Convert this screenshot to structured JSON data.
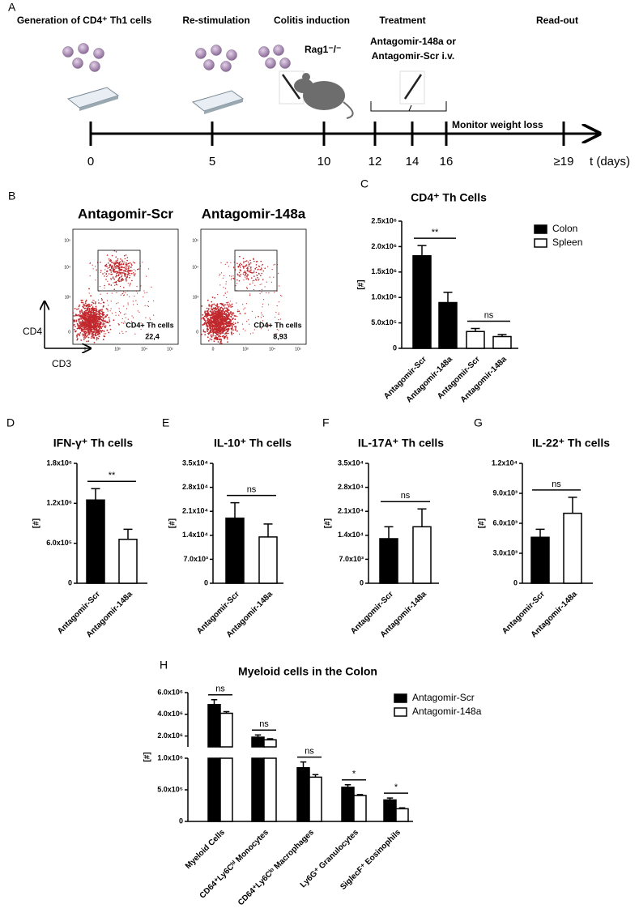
{
  "panel_labels": [
    "A",
    "B",
    "C",
    "D",
    "E",
    "F",
    "G",
    "H"
  ],
  "timeline": {
    "stages": [
      "Generation of CD4⁺ Th1 cells",
      "Re-stimulation",
      "Colitis induction",
      "Treatment",
      "Read-out"
    ],
    "strain": "Rag1⁻/⁻",
    "treatment": [
      "Antagomir-148a or",
      "Antagomir-Scr i.v."
    ],
    "monitor": "Monitor weight loss",
    "days": [
      "0",
      "5",
      "10",
      "12",
      "14",
      "16",
      "≥19"
    ],
    "axis_label": "t (days)"
  },
  "flow": {
    "plots": [
      {
        "title": "Antagomir-Scr",
        "gate": "CD4+ Th cells",
        "percent": "22,4"
      },
      {
        "title": "Antagomir-148a",
        "gate": "CD4+ Th cells",
        "percent": "8,93"
      }
    ],
    "y_ticks": [
      "10⁵",
      "10⁴",
      "10³",
      "0"
    ],
    "x_ticks": [
      "0",
      "10³",
      "10⁴",
      "10⁵"
    ],
    "y_label": "CD4",
    "x_label": "CD3"
  },
  "chart_data": [
    {
      "type": "bar",
      "title": "CD4⁺ Th Cells",
      "ylabel": "[#]",
      "categories": [
        "Antagomir-Scr",
        "Antagomir-148a",
        "Antagomir-Scr",
        "Antagomir-148a"
      ],
      "series": [
        {
          "name": "Colon",
          "color": "#000000",
          "values": [
            1820000,
            900000,
            null,
            null
          ],
          "errors": [
            200000,
            200000,
            null,
            null
          ]
        },
        {
          "name": "Spleen",
          "color": "#ffffff",
          "values": [
            null,
            null,
            330000,
            230000
          ],
          "errors": [
            null,
            null,
            60000,
            40000
          ]
        }
      ],
      "ylim": [
        0,
        2500000
      ],
      "yticks": [
        0,
        {
          "value": 500000,
          "label": "5.0x10⁵"
        },
        {
          "value": 1000000,
          "label": "1.0x10⁶"
        },
        {
          "value": 1500000,
          "label": "1.5x10⁶"
        },
        {
          "value": 2000000,
          "label": "2.0x10⁶"
        },
        {
          "value": 2500000,
          "label": "2.5x10⁶"
        }
      ],
      "legend": "right",
      "comparisons": [
        {
          "label": "**",
          "categories": [
            0,
            1
          ]
        },
        {
          "label": "ns",
          "categories": [
            2,
            3
          ]
        }
      ]
    },
    {
      "type": "bar",
      "title": "IFN-γ⁺ Th cells",
      "ylabel": "[#]",
      "categories": [
        "Antagomir-Scr",
        "Antagomir-148a"
      ],
      "values": [
        1250000,
        660000
      ],
      "errors": [
        170000,
        150000
      ],
      "colors": [
        "#000000",
        "#ffffff"
      ],
      "ylim": [
        0,
        1800000
      ],
      "yticks": [
        0,
        {
          "value": 600000,
          "label": "6.0x10⁵"
        },
        {
          "value": 1200000,
          "label": "1.2x10⁶"
        },
        {
          "value": 1800000,
          "label": "1.8x10⁶"
        }
      ],
      "comparisons": [
        {
          "label": "**",
          "categories": [
            0,
            1
          ]
        }
      ]
    },
    {
      "type": "bar",
      "title": "IL-10⁺ Th cells",
      "ylabel": "[#]",
      "categories": [
        "Antagomir-Scr",
        "Antagomir-148a"
      ],
      "values": [
        19000,
        13500
      ],
      "errors": [
        4500,
        3800
      ],
      "colors": [
        "#000000",
        "#ffffff"
      ],
      "ylim": [
        0,
        35000
      ],
      "yticks": [
        0,
        {
          "value": 7000,
          "label": "7.0x10³"
        },
        {
          "value": 14000,
          "label": "1.4x10⁴"
        },
        {
          "value": 21000,
          "label": "2.1x10⁴"
        },
        {
          "value": 28000,
          "label": "2.8x10⁴"
        },
        {
          "value": 35000,
          "label": "3.5x10⁴"
        }
      ],
      "comparisons": [
        {
          "label": "ns",
          "categories": [
            0,
            1
          ]
        }
      ]
    },
    {
      "type": "bar",
      "title": "IL-17A⁺ Th cells",
      "ylabel": "[#]",
      "categories": [
        "Antagomir-Scr",
        "Antagomir-148a"
      ],
      "values": [
        13000,
        16500
      ],
      "errors": [
        3500,
        5200
      ],
      "colors": [
        "#000000",
        "#ffffff"
      ],
      "ylim": [
        0,
        35000
      ],
      "yticks": [
        0,
        {
          "value": 7000,
          "label": "7.0x10³"
        },
        {
          "value": 14000,
          "label": "1.4x10⁴"
        },
        {
          "value": 21000,
          "label": "2.1x10⁴"
        },
        {
          "value": 28000,
          "label": "2.8x10⁴"
        },
        {
          "value": 35000,
          "label": "3.5x10⁴"
        }
      ],
      "comparisons": [
        {
          "label": "ns",
          "categories": [
            0,
            1
          ]
        }
      ]
    },
    {
      "type": "bar",
      "title": "IL-22⁺ Th cells",
      "ylabel": "[#]",
      "categories": [
        "Antagomir-Scr",
        "Antagomir-148a"
      ],
      "values": [
        4600,
        7000
      ],
      "errors": [
        800,
        1600
      ],
      "colors": [
        "#000000",
        "#ffffff"
      ],
      "ylim": [
        0,
        12000
      ],
      "yticks": [
        0,
        {
          "value": 3000,
          "label": "3.0x10³"
        },
        {
          "value": 6000,
          "label": "6.0x10³"
        },
        {
          "value": 9000,
          "label": "9.0x10³"
        },
        {
          "value": 12000,
          "label": "1.2x10⁴"
        }
      ],
      "comparisons": [
        {
          "label": "ns",
          "categories": [
            0,
            1
          ]
        }
      ]
    },
    {
      "type": "bar",
      "title": "Myeloid cells in the Colon",
      "ylabel": "[#]",
      "categories": [
        "Myeloid Cells",
        "CD64⁺Ly6Cʰⁱ Monocytes",
        "CD64⁺Ly6Cˡᵒ Macrophages",
        "Ly6G⁺ Granulocytes",
        "SiglecF⁺ Eosinophils"
      ],
      "series": [
        {
          "name": "Antagomir-Scr",
          "color": "#000000",
          "values": [
            4900000,
            1900000,
            850000,
            540000,
            340000
          ],
          "errors": [
            450000,
            200000,
            90000,
            40000,
            30000
          ]
        },
        {
          "name": "Antagomir-148a",
          "color": "#ffffff",
          "values": [
            4100000,
            1650000,
            700000,
            410000,
            200000
          ],
          "errors": [
            150000,
            100000,
            40000,
            15000,
            15000
          ]
        }
      ],
      "ylim_segments": [
        [
          0,
          1000000
        ],
        [
          1000000,
          6000000
        ]
      ],
      "yticks": [
        0,
        {
          "value": 500000,
          "label": "5.0x10⁵"
        },
        {
          "value": 1000000,
          "label": "1.0x10⁶"
        },
        {
          "value": 2000000,
          "label": "2.0x10⁶"
        },
        {
          "value": 4000000,
          "label": "4.0x10⁶"
        },
        {
          "value": 6000000,
          "label": "6.0x10⁶"
        }
      ],
      "legend": "right",
      "comparisons": [
        {
          "label": "ns",
          "category": 0
        },
        {
          "label": "ns",
          "category": 1
        },
        {
          "label": "ns",
          "category": 2
        },
        {
          "label": "*",
          "category": 3
        },
        {
          "label": "*",
          "category": 4
        }
      ]
    }
  ]
}
